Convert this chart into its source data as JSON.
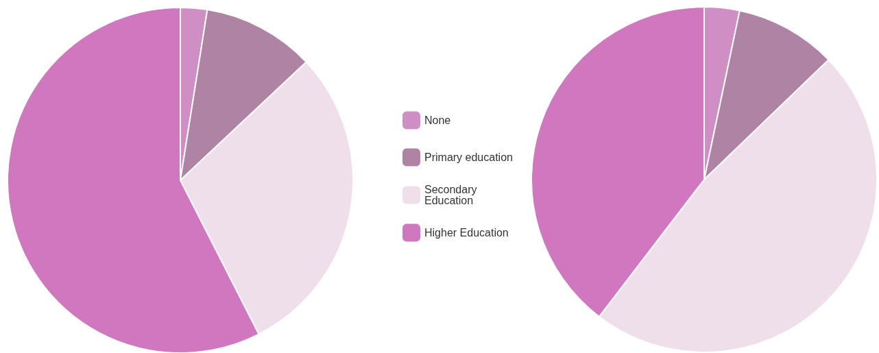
{
  "chart_data": {
    "type": "pie",
    "categories": [
      "None",
      "Primary education",
      "Secondary Education",
      "Higher Education"
    ],
    "colors": [
      "#cf8fc4",
      "#ae83a3",
      "#efdfea",
      "#d077bf"
    ],
    "legend": "right",
    "series": [
      {
        "values": [
          2.5,
          10.5,
          29.5,
          57.5
        ]
      },
      {
        "values": [
          3.3,
          9.5,
          47.6,
          39.6
        ]
      }
    ]
  }
}
